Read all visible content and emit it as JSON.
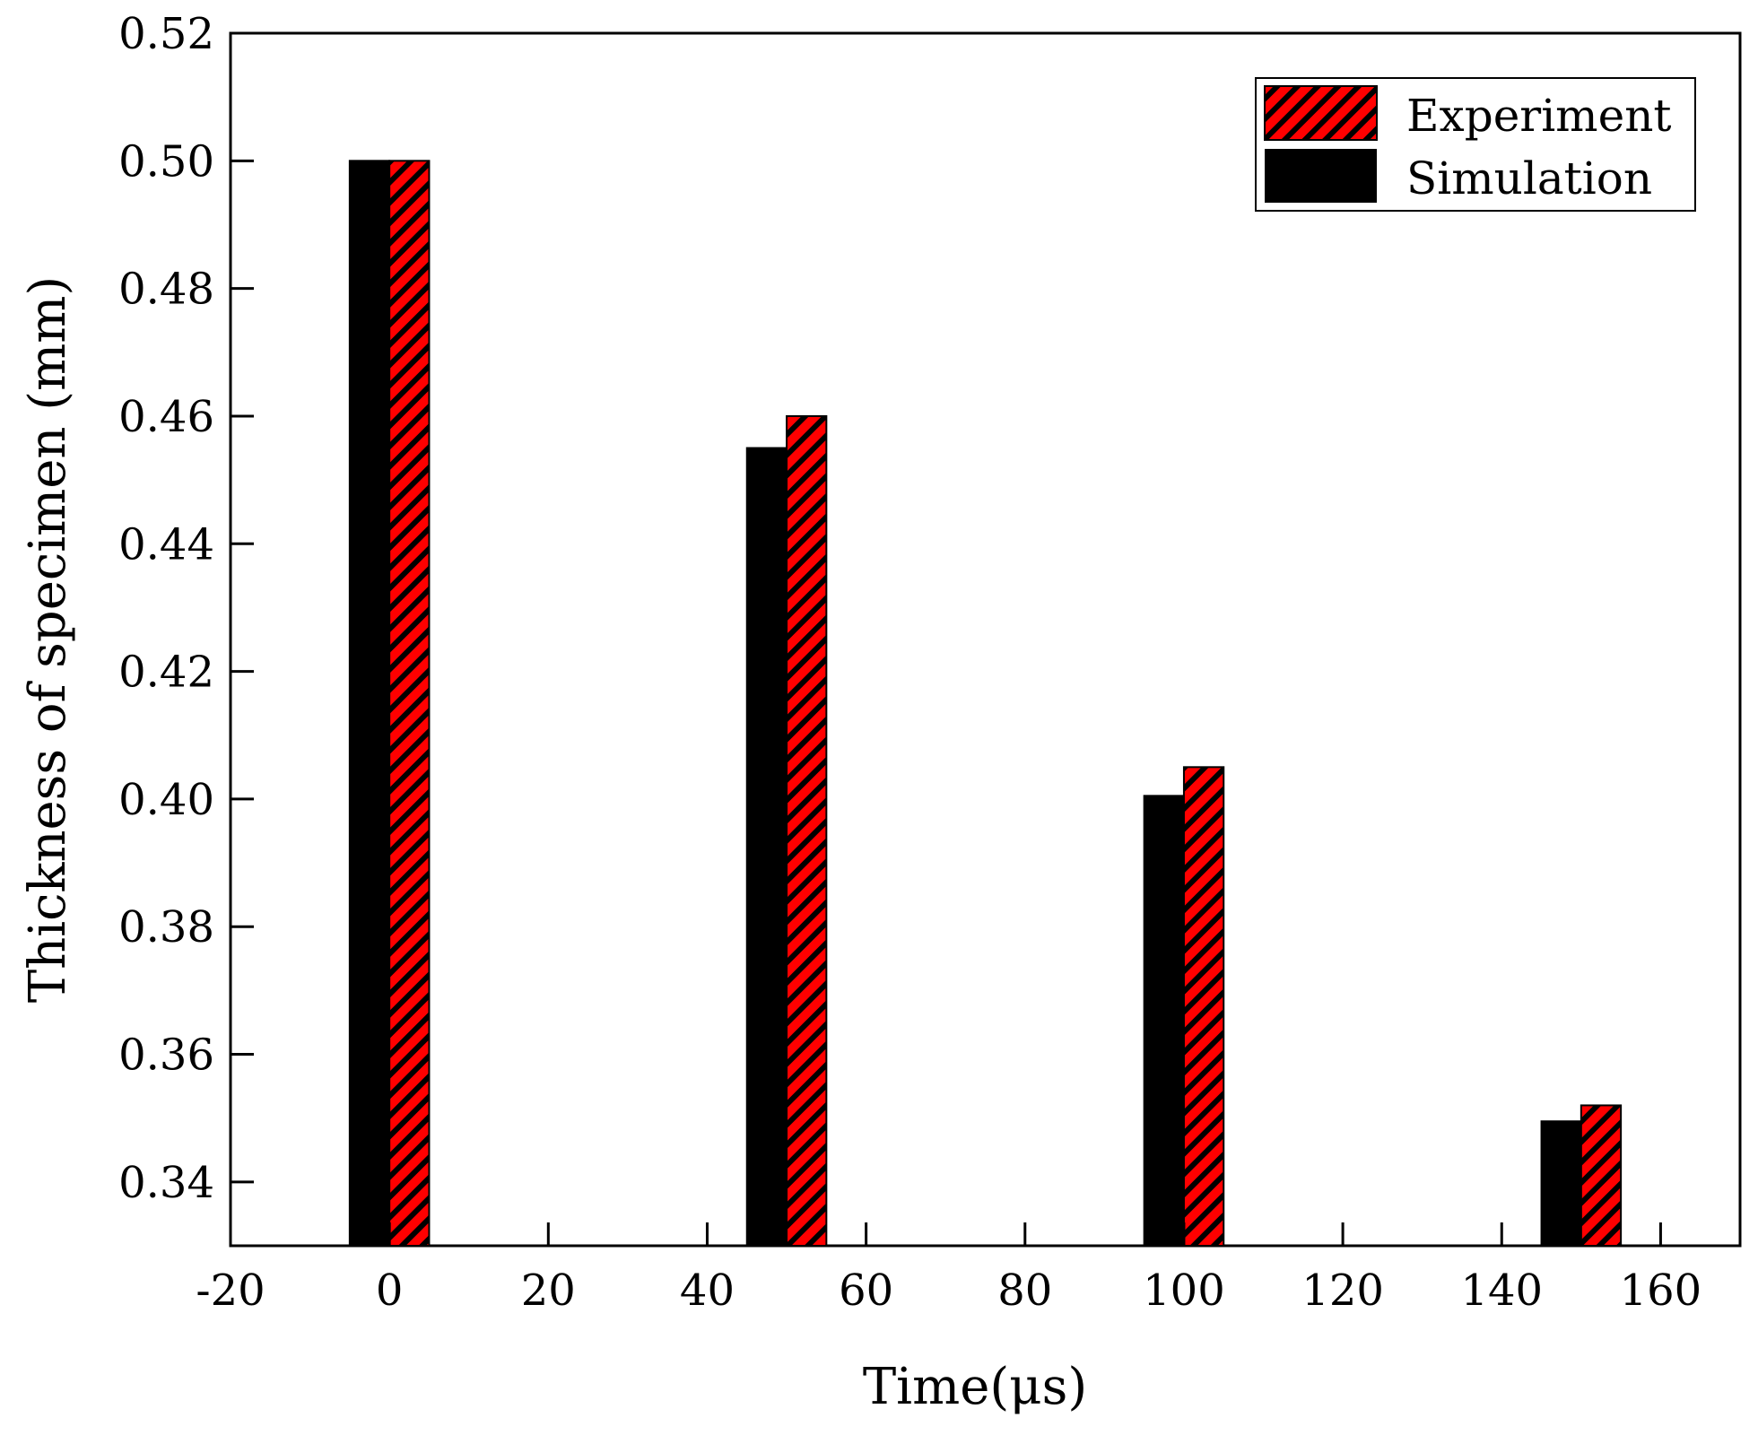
{
  "chart_data": {
    "type": "bar",
    "xlabel": "Time(μs)",
    "ylabel": "Thickness of specimen (mm)",
    "xlim": [
      -20,
      170
    ],
    "ylim": [
      0.33,
      0.52
    ],
    "xticks": [
      "-20",
      "0",
      "20",
      "40",
      "60",
      "80",
      "100",
      "120",
      "140",
      "160"
    ],
    "xtick_values": [
      -20,
      0,
      20,
      40,
      60,
      80,
      100,
      120,
      140,
      160
    ],
    "yticks": [
      "0.34",
      "0.36",
      "0.38",
      "0.40",
      "0.42",
      "0.44",
      "0.46",
      "0.48",
      "0.50",
      "0.52"
    ],
    "ytick_values": [
      0.34,
      0.36,
      0.38,
      0.4,
      0.42,
      0.44,
      0.46,
      0.48,
      0.5,
      0.52
    ],
    "x": [
      0,
      50,
      100,
      150
    ],
    "bar_width": 5,
    "series": [
      {
        "name": "Simulation",
        "values": [
          0.5,
          0.455,
          0.4005,
          0.3495
        ],
        "color": "#000000",
        "pattern": "solid",
        "offset": -2.5
      },
      {
        "name": "Experiment",
        "values": [
          0.5,
          0.46,
          0.405,
          0.352
        ],
        "color": "#ff0000",
        "pattern": "hatch",
        "offset": 2.5
      }
    ],
    "legend": {
      "position": "top-right",
      "order": [
        "Experiment",
        "Simulation"
      ]
    },
    "grid": false
  }
}
